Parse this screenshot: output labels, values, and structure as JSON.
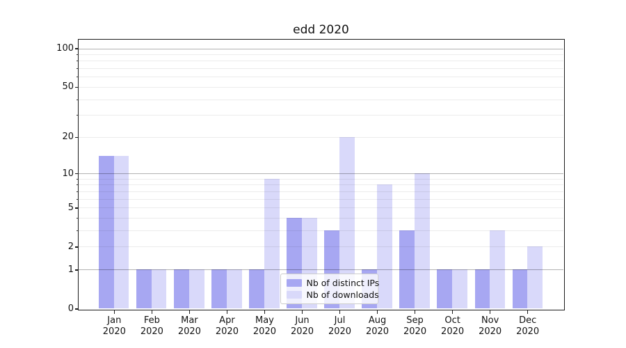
{
  "chart_data": {
    "type": "bar",
    "title": "edd 2020",
    "categories": [
      "Jan 2020",
      "Feb 2020",
      "Mar 2020",
      "Apr 2020",
      "May 2020",
      "Jun 2020",
      "Jul 2020",
      "Aug 2020",
      "Sep 2020",
      "Oct 2020",
      "Nov 2020",
      "Dec 2020"
    ],
    "series": [
      {
        "name": "Nb of distinct IPs",
        "color": "#a7a7f2",
        "values": [
          14,
          1,
          1,
          1,
          1,
          4,
          3,
          1,
          3,
          1,
          1,
          1
        ]
      },
      {
        "name": "Nb of downloads",
        "color": "#d9d9fa",
        "values": [
          14,
          1,
          1,
          1,
          9,
          4,
          20,
          8,
          10,
          1,
          3,
          2
        ]
      }
    ],
    "yscale": "log1p",
    "ylim": [
      0,
      117
    ],
    "yticks": [
      0,
      1,
      2,
      5,
      10,
      20,
      50,
      100
    ],
    "yticks_minor": [
      3,
      4,
      6,
      7,
      8,
      9,
      30,
      40,
      60,
      70,
      80,
      90
    ],
    "grid_major": [
      1,
      10,
      100
    ],
    "grid_minor": [
      2,
      3,
      4,
      5,
      6,
      7,
      8,
      9,
      20,
      30,
      40,
      50,
      60,
      70,
      80,
      90
    ],
    "legend": {
      "position": "lower center-right",
      "entries": [
        "Nb of distinct IPs",
        "Nb of downloads"
      ]
    },
    "colors": {
      "major_grid": "#b3b3b3",
      "minor_grid": "#ececec",
      "axis": "#1a1a1a",
      "text": "#111111",
      "background": "#ffffff"
    }
  }
}
